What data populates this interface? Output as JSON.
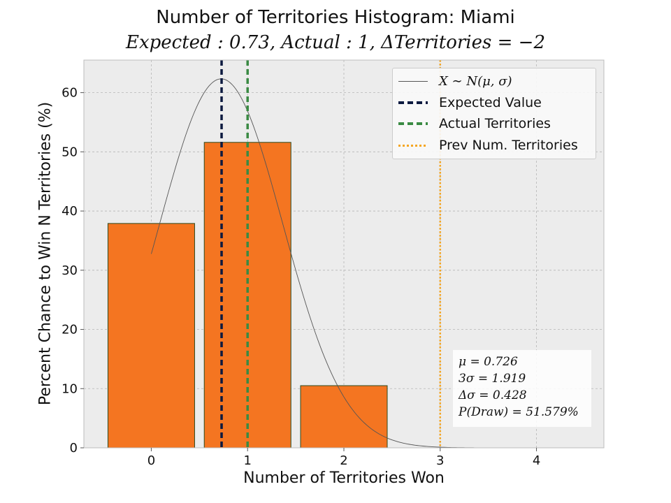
{
  "title": "Number of Territories Histogram: Miami",
  "subtitle": "Expected : 0.73, Actual : 1, ΔTerritories = −2",
  "chart_data": {
    "type": "bar",
    "categories": [
      0,
      1,
      2,
      3,
      4
    ],
    "x_ticks": [
      "0",
      "1",
      "2",
      "3",
      "4"
    ],
    "y_ticks": [
      "0",
      "10",
      "20",
      "30",
      "40",
      "50",
      "60"
    ],
    "values": [
      37.9,
      51.6,
      10.5,
      0,
      0
    ],
    "bar_color": "#f47521",
    "bar_edge_color": "#2c4a1e",
    "xlabel": "Number of Territories Won",
    "ylabel": "Percent Chance to Win N Territories (%)",
    "xlim": [
      -0.7,
      4.7
    ],
    "ylim": [
      0,
      65.5
    ],
    "grid": true,
    "normal_curve": {
      "mu": 0.726,
      "sigma": 0.64,
      "color": "#555555"
    },
    "vlines": [
      {
        "name": "Expected Value",
        "x": 0.73,
        "color": "#0c1a40",
        "style": "dashed"
      },
      {
        "name": "Actual Territories",
        "x": 1,
        "color": "#3a8a43",
        "style": "dashed"
      },
      {
        "name": "Prev Num. Territories",
        "x": 3,
        "color": "#f5a623",
        "style": "dotted"
      }
    ],
    "legend": {
      "position": "top-right",
      "entries": [
        {
          "label": "X ∼ N(μ, σ)",
          "color": "#555555",
          "style": "solid"
        },
        {
          "label": "Expected Value",
          "color": "#0c1a40",
          "style": "dashed"
        },
        {
          "label": "Actual Territories",
          "color": "#3a8a43",
          "style": "dashed"
        },
        {
          "label": "Prev Num. Territories",
          "color": "#f5a623",
          "style": "dotted"
        }
      ]
    },
    "stats": [
      "μ = 0.726",
      "3σ = 1.919",
      "Δσ = 0.428",
      "P(Draw) = 51.579%"
    ]
  }
}
